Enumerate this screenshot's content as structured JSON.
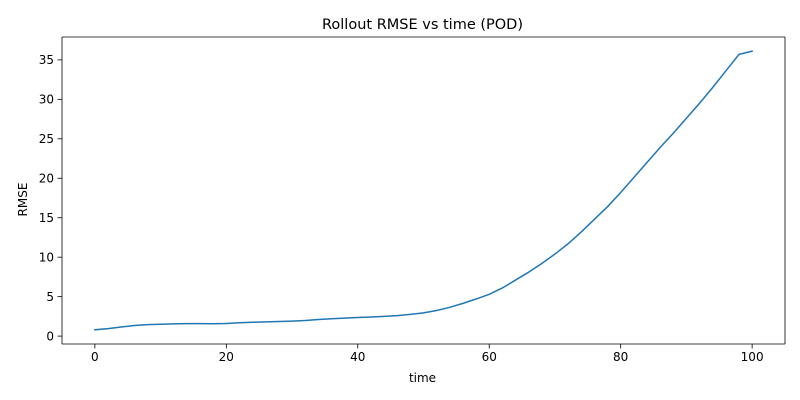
{
  "chart_data": {
    "type": "line",
    "title": "Rollout RMSE vs time (POD)",
    "xlabel": "time",
    "ylabel": "RMSE",
    "xlim": [
      -5,
      105
    ],
    "ylim": [
      -1.0,
      37.9
    ],
    "xticks": [
      0,
      20,
      40,
      60,
      80,
      100
    ],
    "yticks": [
      0,
      5,
      10,
      15,
      20,
      25,
      30,
      35
    ],
    "grid": false,
    "color": "#1f77b4",
    "series": [
      {
        "name": "RMSE",
        "x": [
          0,
          2,
          4,
          6,
          8,
          10,
          12,
          14,
          16,
          18,
          20,
          22,
          24,
          26,
          28,
          30,
          32,
          34,
          36,
          38,
          40,
          42,
          44,
          46,
          48,
          50,
          52,
          54,
          56,
          58,
          60,
          62,
          64,
          66,
          68,
          70,
          72,
          74,
          76,
          78,
          80,
          82,
          84,
          86,
          88,
          90,
          92,
          94,
          96,
          98,
          100
        ],
        "values": [
          0.8,
          0.95,
          1.15,
          1.35,
          1.45,
          1.5,
          1.55,
          1.58,
          1.58,
          1.57,
          1.6,
          1.7,
          1.75,
          1.8,
          1.85,
          1.9,
          1.98,
          2.1,
          2.2,
          2.28,
          2.35,
          2.42,
          2.5,
          2.6,
          2.75,
          2.95,
          3.25,
          3.65,
          4.15,
          4.7,
          5.3,
          6.1,
          7.1,
          8.1,
          9.2,
          10.4,
          11.7,
          13.2,
          14.8,
          16.4,
          18.2,
          20.1,
          22.0,
          23.9,
          25.7,
          27.6,
          29.5,
          31.5,
          33.6,
          35.7,
          36.1
        ]
      }
    ]
  }
}
